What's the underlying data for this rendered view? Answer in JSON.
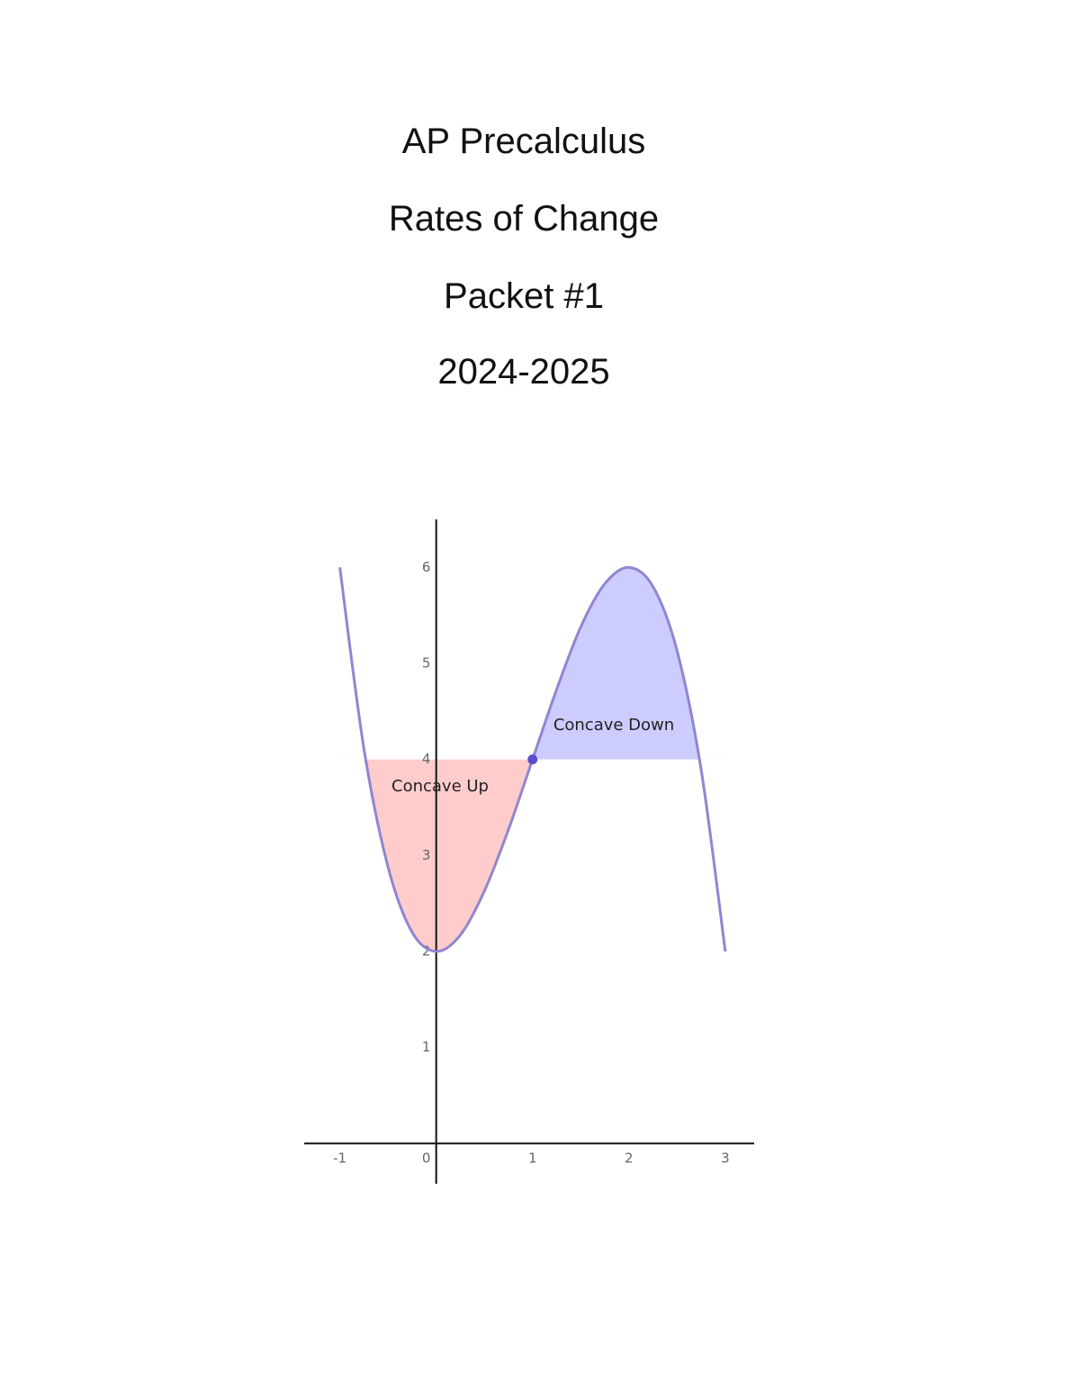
{
  "header": {
    "lines": [
      "AP Precalculus",
      "Rates of Change",
      "Packet #1",
      "2024-2025"
    ]
  },
  "chart_data": {
    "type": "line",
    "x": [
      -1,
      -0.75,
      -0.5,
      -0.25,
      0,
      0.25,
      0.5,
      0.75,
      1,
      1.25,
      1.5,
      1.75,
      2,
      2.25,
      2.5,
      2.75,
      3
    ],
    "series": [
      {
        "color": "#8f86d0",
        "values": [
          6,
          4.11,
          2.88,
          2.2,
          2,
          2.17,
          2.63,
          3.27,
          4,
          4.73,
          5.38,
          5.83,
          6,
          5.8,
          5.13,
          3.89,
          2
        ]
      }
    ],
    "point": {
      "x": 1,
      "y": 4,
      "color": "#5a4fcf"
    },
    "annotations": [
      "Concave Up",
      "Concave Down"
    ],
    "region_colors": [
      "#ffcccc",
      "#ccccff"
    ],
    "xlim": [
      -1.37,
      3.3
    ],
    "ylim": [
      -0.42,
      6.5
    ],
    "xticks": [
      -1,
      0,
      1,
      2,
      3
    ],
    "yticks": [
      1,
      2,
      3,
      4,
      5,
      6
    ],
    "grid": false
  }
}
